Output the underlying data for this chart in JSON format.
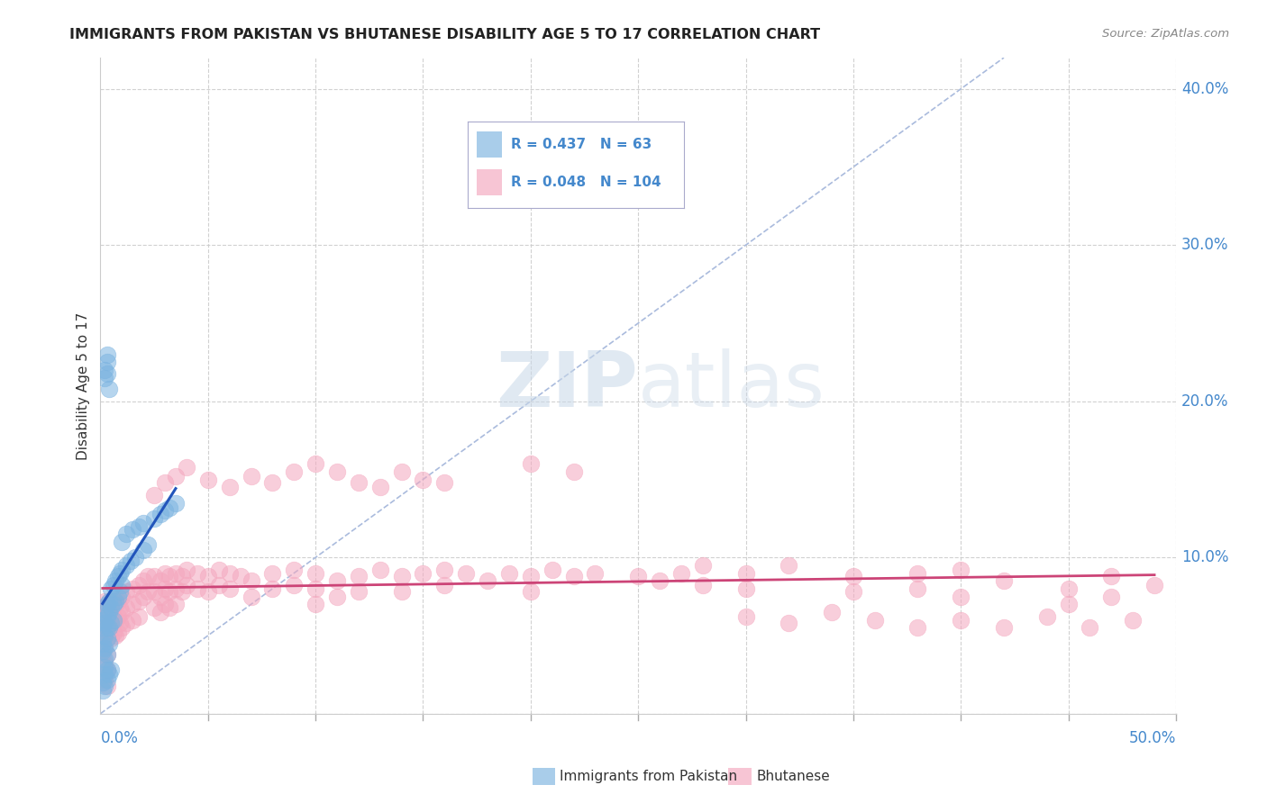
{
  "title": "IMMIGRANTS FROM PAKISTAN VS BHUTANESE DISABILITY AGE 5 TO 17 CORRELATION CHART",
  "source": "Source: ZipAtlas.com",
  "ylabel": "Disability Age 5 to 17",
  "xlim": [
    0.0,
    0.5
  ],
  "ylim": [
    0.0,
    0.42
  ],
  "blue_R": 0.437,
  "blue_N": 63,
  "pink_R": 0.048,
  "pink_N": 104,
  "legend_label_blue": "Immigrants from Pakistan",
  "legend_label_pink": "Bhutanese",
  "background_color": "#ffffff",
  "grid_color": "#cccccc",
  "blue_color": "#7bb3e0",
  "pink_color": "#f4a7be",
  "blue_line_color": "#2255bb",
  "pink_line_color": "#cc4477",
  "ref_line_color": "#aabbdd",
  "tick_color": "#4488cc",
  "title_color": "#222222",
  "source_color": "#888888",
  "blue_scatter": [
    [
      0.001,
      0.06
    ],
    [
      0.001,
      0.055
    ],
    [
      0.001,
      0.045
    ],
    [
      0.001,
      0.04
    ],
    [
      0.002,
      0.065
    ],
    [
      0.002,
      0.058
    ],
    [
      0.002,
      0.05
    ],
    [
      0.002,
      0.042
    ],
    [
      0.002,
      0.035
    ],
    [
      0.002,
      0.03
    ],
    [
      0.002,
      0.025
    ],
    [
      0.003,
      0.07
    ],
    [
      0.003,
      0.062
    ],
    [
      0.003,
      0.055
    ],
    [
      0.003,
      0.048
    ],
    [
      0.003,
      0.038
    ],
    [
      0.003,
      0.028
    ],
    [
      0.004,
      0.072
    ],
    [
      0.004,
      0.065
    ],
    [
      0.004,
      0.055
    ],
    [
      0.004,
      0.045
    ],
    [
      0.005,
      0.08
    ],
    [
      0.005,
      0.068
    ],
    [
      0.005,
      0.058
    ],
    [
      0.006,
      0.082
    ],
    [
      0.006,
      0.07
    ],
    [
      0.006,
      0.06
    ],
    [
      0.007,
      0.085
    ],
    [
      0.007,
      0.072
    ],
    [
      0.008,
      0.088
    ],
    [
      0.008,
      0.075
    ],
    [
      0.009,
      0.09
    ],
    [
      0.009,
      0.078
    ],
    [
      0.01,
      0.092
    ],
    [
      0.01,
      0.082
    ],
    [
      0.012,
      0.095
    ],
    [
      0.014,
      0.098
    ],
    [
      0.016,
      0.1
    ],
    [
      0.02,
      0.105
    ],
    [
      0.022,
      0.108
    ],
    [
      0.002,
      0.215
    ],
    [
      0.002,
      0.22
    ],
    [
      0.003,
      0.225
    ],
    [
      0.003,
      0.23
    ],
    [
      0.003,
      0.218
    ],
    [
      0.004,
      0.208
    ],
    [
      0.01,
      0.11
    ],
    [
      0.012,
      0.115
    ],
    [
      0.015,
      0.118
    ],
    [
      0.018,
      0.12
    ],
    [
      0.02,
      0.122
    ],
    [
      0.025,
      0.125
    ],
    [
      0.028,
      0.128
    ],
    [
      0.03,
      0.13
    ],
    [
      0.032,
      0.132
    ],
    [
      0.035,
      0.135
    ],
    [
      0.001,
      0.02
    ],
    [
      0.001,
      0.015
    ],
    [
      0.002,
      0.018
    ],
    [
      0.003,
      0.022
    ],
    [
      0.004,
      0.025
    ],
    [
      0.005,
      0.028
    ]
  ],
  "pink_scatter": [
    [
      0.001,
      0.068
    ],
    [
      0.001,
      0.058
    ],
    [
      0.001,
      0.048
    ],
    [
      0.001,
      0.038
    ],
    [
      0.002,
      0.072
    ],
    [
      0.002,
      0.062
    ],
    [
      0.002,
      0.052
    ],
    [
      0.002,
      0.042
    ],
    [
      0.002,
      0.032
    ],
    [
      0.002,
      0.022
    ],
    [
      0.003,
      0.068
    ],
    [
      0.003,
      0.058
    ],
    [
      0.003,
      0.048
    ],
    [
      0.003,
      0.038
    ],
    [
      0.003,
      0.028
    ],
    [
      0.003,
      0.018
    ],
    [
      0.004,
      0.072
    ],
    [
      0.004,
      0.062
    ],
    [
      0.004,
      0.052
    ],
    [
      0.005,
      0.068
    ],
    [
      0.005,
      0.058
    ],
    [
      0.005,
      0.048
    ],
    [
      0.006,
      0.072
    ],
    [
      0.006,
      0.062
    ],
    [
      0.006,
      0.052
    ],
    [
      0.007,
      0.07
    ],
    [
      0.007,
      0.06
    ],
    [
      0.007,
      0.05
    ],
    [
      0.008,
      0.072
    ],
    [
      0.008,
      0.062
    ],
    [
      0.008,
      0.052
    ],
    [
      0.009,
      0.068
    ],
    [
      0.009,
      0.058
    ],
    [
      0.01,
      0.075
    ],
    [
      0.01,
      0.065
    ],
    [
      0.01,
      0.055
    ],
    [
      0.012,
      0.078
    ],
    [
      0.012,
      0.068
    ],
    [
      0.012,
      0.058
    ],
    [
      0.015,
      0.08
    ],
    [
      0.015,
      0.07
    ],
    [
      0.015,
      0.06
    ],
    [
      0.018,
      0.082
    ],
    [
      0.018,
      0.072
    ],
    [
      0.018,
      0.062
    ],
    [
      0.02,
      0.085
    ],
    [
      0.02,
      0.075
    ],
    [
      0.022,
      0.088
    ],
    [
      0.022,
      0.078
    ],
    [
      0.025,
      0.088
    ],
    [
      0.025,
      0.078
    ],
    [
      0.025,
      0.068
    ],
    [
      0.028,
      0.085
    ],
    [
      0.028,
      0.075
    ],
    [
      0.028,
      0.065
    ],
    [
      0.03,
      0.09
    ],
    [
      0.03,
      0.08
    ],
    [
      0.03,
      0.07
    ],
    [
      0.032,
      0.088
    ],
    [
      0.032,
      0.078
    ],
    [
      0.032,
      0.068
    ],
    [
      0.035,
      0.09
    ],
    [
      0.035,
      0.08
    ],
    [
      0.035,
      0.07
    ],
    [
      0.038,
      0.088
    ],
    [
      0.038,
      0.078
    ],
    [
      0.04,
      0.092
    ],
    [
      0.04,
      0.082
    ],
    [
      0.045,
      0.09
    ],
    [
      0.045,
      0.08
    ],
    [
      0.05,
      0.088
    ],
    [
      0.05,
      0.078
    ],
    [
      0.055,
      0.092
    ],
    [
      0.055,
      0.082
    ],
    [
      0.06,
      0.09
    ],
    [
      0.06,
      0.08
    ],
    [
      0.065,
      0.088
    ],
    [
      0.07,
      0.085
    ],
    [
      0.07,
      0.075
    ],
    [
      0.08,
      0.09
    ],
    [
      0.08,
      0.08
    ],
    [
      0.09,
      0.092
    ],
    [
      0.09,
      0.082
    ],
    [
      0.1,
      0.09
    ],
    [
      0.1,
      0.08
    ],
    [
      0.1,
      0.07
    ],
    [
      0.11,
      0.085
    ],
    [
      0.11,
      0.075
    ],
    [
      0.12,
      0.088
    ],
    [
      0.12,
      0.078
    ],
    [
      0.13,
      0.092
    ],
    [
      0.14,
      0.088
    ],
    [
      0.14,
      0.078
    ],
    [
      0.15,
      0.09
    ],
    [
      0.16,
      0.092
    ],
    [
      0.16,
      0.082
    ],
    [
      0.17,
      0.09
    ],
    [
      0.18,
      0.085
    ],
    [
      0.19,
      0.09
    ],
    [
      0.2,
      0.088
    ],
    [
      0.2,
      0.078
    ],
    [
      0.21,
      0.092
    ],
    [
      0.22,
      0.088
    ],
    [
      0.23,
      0.09
    ],
    [
      0.025,
      0.14
    ],
    [
      0.03,
      0.148
    ],
    [
      0.035,
      0.152
    ],
    [
      0.04,
      0.158
    ],
    [
      0.05,
      0.15
    ],
    [
      0.06,
      0.145
    ],
    [
      0.07,
      0.152
    ],
    [
      0.08,
      0.148
    ],
    [
      0.09,
      0.155
    ],
    [
      0.1,
      0.16
    ],
    [
      0.11,
      0.155
    ],
    [
      0.12,
      0.148
    ],
    [
      0.13,
      0.145
    ],
    [
      0.14,
      0.155
    ],
    [
      0.15,
      0.15
    ],
    [
      0.16,
      0.148
    ],
    [
      0.28,
      0.095
    ],
    [
      0.3,
      0.09
    ],
    [
      0.3,
      0.08
    ],
    [
      0.32,
      0.095
    ],
    [
      0.35,
      0.088
    ],
    [
      0.35,
      0.078
    ],
    [
      0.38,
      0.09
    ],
    [
      0.38,
      0.08
    ],
    [
      0.4,
      0.092
    ],
    [
      0.4,
      0.075
    ],
    [
      0.42,
      0.085
    ],
    [
      0.45,
      0.08
    ],
    [
      0.45,
      0.07
    ],
    [
      0.47,
      0.088
    ],
    [
      0.47,
      0.075
    ],
    [
      0.49,
      0.082
    ],
    [
      0.25,
      0.088
    ],
    [
      0.26,
      0.085
    ],
    [
      0.27,
      0.09
    ],
    [
      0.28,
      0.082
    ],
    [
      0.2,
      0.16
    ],
    [
      0.22,
      0.155
    ],
    [
      0.3,
      0.062
    ],
    [
      0.32,
      0.058
    ],
    [
      0.34,
      0.065
    ],
    [
      0.36,
      0.06
    ],
    [
      0.38,
      0.055
    ],
    [
      0.4,
      0.06
    ],
    [
      0.42,
      0.055
    ],
    [
      0.44,
      0.062
    ],
    [
      0.46,
      0.055
    ],
    [
      0.48,
      0.06
    ]
  ]
}
